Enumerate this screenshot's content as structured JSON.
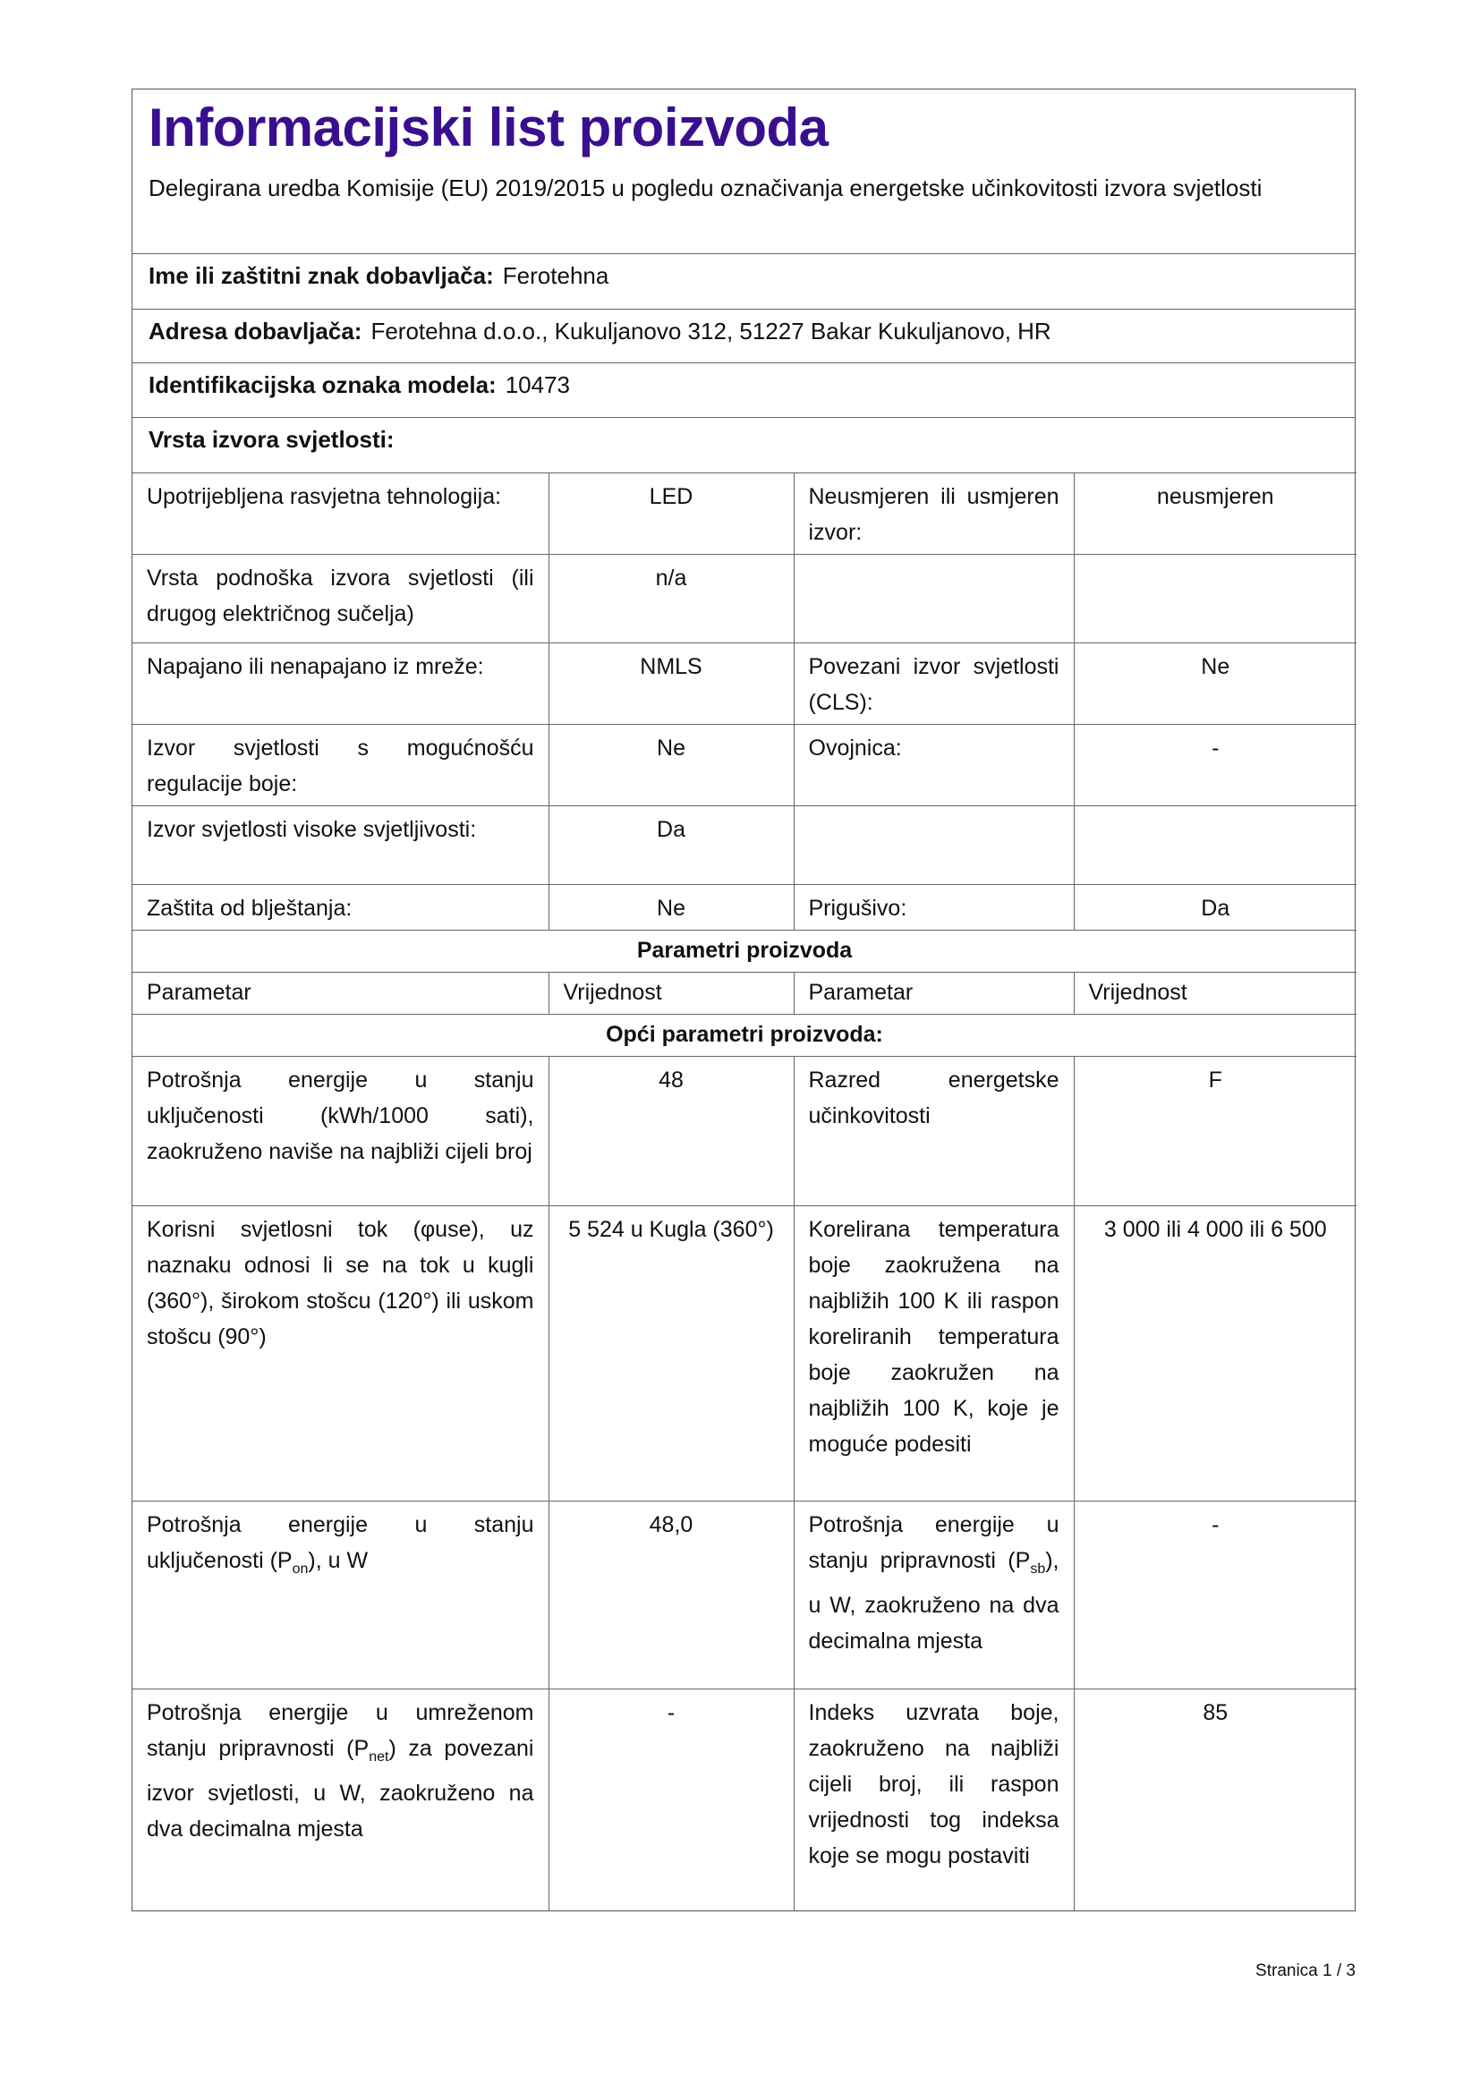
{
  "header": {
    "title": "Informacijski list proizvoda",
    "subtitle": "Delegirana uredba Komisije (EU) 2019/2015 u pogledu označivanja energetske učinkovitosti izvora svjetlosti"
  },
  "supplier": {
    "name_label": "Ime ili zaštitni znak dobavljača:",
    "name_value": "Ferotehna",
    "address_label": "Adresa dobavljača:",
    "address_value": "Ferotehna d.o.o., Kukuljanovo 312, 51227 Bakar Kukuljanovo, HR",
    "model_label": "Identifikacijska oznaka modela:",
    "model_value": "10473",
    "type_label": "Vrsta izvora svjetlosti:"
  },
  "type_rows": [
    {
      "l1": "Upotrijebljena rasvjetna tehnologija:",
      "v1": "LED",
      "l2": "Neusmjeren ili usmjeren izvor:",
      "v2": "neusmjeren"
    },
    {
      "l1": "Vrsta podnoška izvora svjetlosti (ili drugog električnog sučelja)",
      "v1": "n/a",
      "l2": "",
      "v2": ""
    },
    {
      "l1": "Napajano ili nenapajano iz mreže:",
      "v1": "NMLS",
      "l2": "Povezani izvor svjetlosti (CLS):",
      "v2": "Ne"
    },
    {
      "l1": "Izvor svjetlosti s mogućnošću regulacije boje:",
      "v1": "Ne",
      "l2": "Ovojnica:",
      "v2": "-"
    },
    {
      "l1": "Izvor svjetlosti visoke svjetljivosti:",
      "v1": "Da",
      "l2": "",
      "v2": ""
    },
    {
      "l1": "Zaštita od blještanja:",
      "v1": "Ne",
      "l2": "Prigušivo:",
      "v2": "Da"
    }
  ],
  "params": {
    "section_title": "Parametri proizvoda",
    "col_param": "Parametar",
    "col_value": "Vrijednost",
    "general_title": "Opći parametri proizvoda:",
    "rows": [
      {
        "l1": "Potrošnja energije u stanju uključenosti (kWh/1000 sati), zaokruženo naviše na najbliži cijeli broj",
        "v1": "48",
        "l2": "Razred energetske učinkovitosti",
        "v2": "F"
      },
      {
        "l1": "Korisni svjetlosni tok (φuse), uz naznaku odnosi li se na tok u kugli (360°), širokom stošcu (120°) ili uskom stošcu (90°)",
        "v1": "5 524 u Kugla (360°)",
        "l2": "Korelirana temperatura boje zaokružena na najbližih 100 K ili raspon koreliranih temperatura boje zaokružen na najbližih 100 K, koje je moguće podesiti",
        "v2": "3 000 ili 4 000 ili 6 500"
      },
      {
        "l1a": "Potrošnja energije u stanju uključenosti (P",
        "l1s": "on",
        "l1b": "), u W",
        "v1": "48,0",
        "l2a": "Potrošnja energije u stanju pripravnosti (P",
        "l2s": "sb",
        "l2b": "), u W, zaokruženo na dva decimalna mjesta",
        "v2": "-"
      },
      {
        "l1a": "Potrošnja energije u umreženom stanju pripravnosti (P",
        "l1s": "net",
        "l1b": ") za povezani izvor svjetlosti, u W, zaokruženo na dva decimalna mjesta",
        "v1": "-",
        "l2": "Indeks uzvrata boje, zaokruženo na najbliži cijeli broj, ili raspon vrijednosti tog indeksa koje se mogu postaviti",
        "v2": "85"
      }
    ]
  },
  "footer": {
    "page_label": "Stranica 1 / 3"
  },
  "colors": {
    "title": "#3a0f8f",
    "border": "#666666"
  }
}
